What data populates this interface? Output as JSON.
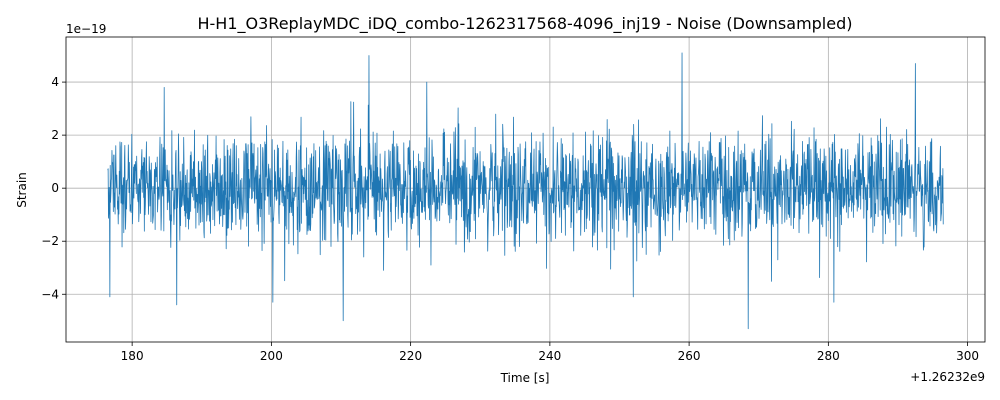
{
  "chart_data": {
    "type": "line",
    "title": "H-H1_O3ReplayMDC_iDQ_combo-1262317568-4096_inj19 - Noise (Downsampled)",
    "xlabel": "Time [s]",
    "ylabel": "Strain",
    "x_offset_label": "+1.26232e9",
    "y_scale_label": "1e−19",
    "xlim": [
      170.5,
      302.5
    ],
    "ylim": [
      -5.8,
      5.7
    ],
    "x_ticks": [
      180,
      200,
      220,
      240,
      260,
      280,
      300
    ],
    "x_tick_labels": [
      "180",
      "200",
      "220",
      "240",
      "260",
      "280",
      "300"
    ],
    "y_ticks": [
      -4,
      -2,
      0,
      2,
      4
    ],
    "y_tick_labels": [
      "−4",
      "−2",
      "0",
      "2",
      "4"
    ],
    "grid": true,
    "series": [
      {
        "color": "#1f77b4",
        "x_range": [
          176.5,
          296.5
        ],
        "typical_amplitude": 1.0,
        "notable_peaks": [
          {
            "x": 214.0,
            "y": 5.0
          },
          {
            "x": 210.3,
            "y": -5.0
          },
          {
            "x": 259.0,
            "y": 5.1
          },
          {
            "x": 268.5,
            "y": -5.3
          },
          {
            "x": 292.5,
            "y": 4.7
          },
          {
            "x": 200.2,
            "y": -4.3
          },
          {
            "x": 186.4,
            "y": -4.4
          },
          {
            "x": 280.8,
            "y": -4.3
          },
          {
            "x": 176.8,
            "y": -4.1
          },
          {
            "x": 184.6,
            "y": 3.8
          },
          {
            "x": 222.3,
            "y": 4.0
          },
          {
            "x": 252.0,
            "y": -4.1
          }
        ]
      }
    ]
  }
}
